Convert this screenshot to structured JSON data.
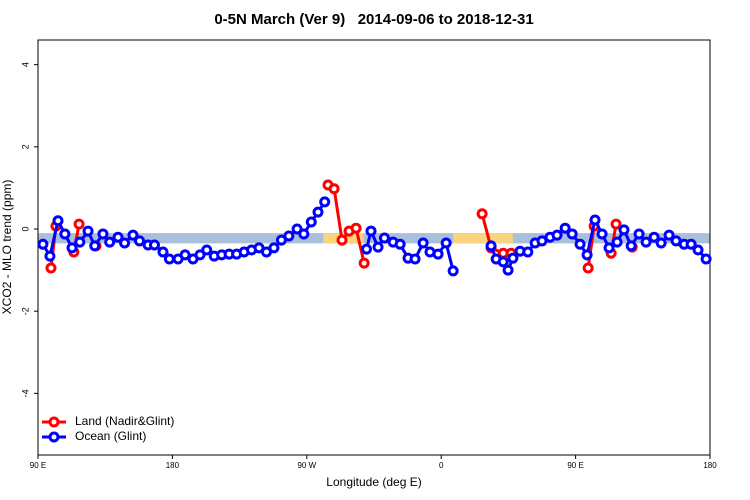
{
  "chart_data": {
    "type": "line",
    "title": "0-5N March (Ver 9)   2014-09-06 to 2018-12-31",
    "x_label": "Longitude (deg E)",
    "y_label": "XCO2 - MLO trend (ppm)",
    "xlim": [
      90,
      540
    ],
    "ylim": [
      -5.5,
      4.6
    ],
    "xticks": [
      {
        "value": 90,
        "label": "90 E"
      },
      180,
      {
        "value": 270,
        "label": "90 W"
      },
      {
        "value": 360,
        "label": "0"
      },
      {
        "value": 450,
        "label": "90 E"
      },
      {
        "value": 540,
        "label": "180"
      }
    ],
    "yticks": [
      -4,
      -2,
      0,
      2,
      4
    ],
    "band": {
      "ylim": [
        -0.35,
        -0.1
      ],
      "color": "#a9bfdc",
      "land_color": "#f8d57e",
      "land_ranges": [
        [
          281,
          308
        ],
        [
          368,
          408
        ]
      ]
    },
    "legend": "bottom-left",
    "series": [
      {
        "name": "Land (Nadir&Glint)",
        "color": "#ff0000",
        "x": [
          98.7,
          102,
          108,
          114,
          117.5,
          123,
          128.8,
          200,
          284.2,
          288.3,
          293.6,
          298.3,
          303,
          308.4,
          350,
          387.4,
          393.4,
          401.5,
          406.8,
          430,
          458.4,
          462.4,
          468,
          473.8,
          477.1,
          482,
          487.9
        ],
        "values": [
          -0.95,
          0.07,
          null,
          -0.56,
          0.12,
          null,
          -0.41,
          null,
          1.07,
          0.98,
          -0.27,
          -0.05,
          0.02,
          -0.83,
          null,
          0.37,
          -0.46,
          -0.59,
          -0.59,
          null,
          -0.95,
          0.07,
          null,
          -0.59,
          0.12,
          null,
          -0.44
        ]
      },
      {
        "name": "Ocean (Glint)",
        "color": "#0000ff",
        "x": [
          93.3,
          98,
          103.4,
          108,
          112.8,
          118,
          123.5,
          128,
          133.5,
          138,
          143.6,
          148,
          153.6,
          158,
          163.7,
          168,
          173.7,
          178,
          183.8,
          188.5,
          193.8,
          198.5,
          203,
          208,
          213,
          218,
          223,
          228,
          233,
          238,
          243,
          248,
          253,
          258,
          263.5,
          268,
          273,
          277.5,
          282,
          296,
          310,
          313,
          317.7,
          322,
          327.8,
          332.5,
          337.8,
          342.5,
          347.9,
          352.5,
          357.9,
          363.3,
          368,
          380,
          393.4,
          396.8,
          401.5,
          404.8,
          408,
          412.8,
          418,
          422.9,
          427.5,
          432.9,
          437.6,
          443,
          447.7,
          453,
          457.7,
          463,
          467.7,
          472.4,
          477.8,
          482.4,
          487.2,
          492.5,
          497.2,
          502.6,
          507.3,
          512.6,
          517.3,
          522.7,
          527.4,
          532,
          537.4
        ],
        "values": [
          -0.37,
          -0.66,
          0.2,
          -0.12,
          -0.46,
          -0.32,
          -0.05,
          -0.41,
          -0.12,
          -0.32,
          -0.2,
          -0.34,
          -0.15,
          -0.29,
          -0.39,
          -0.39,
          -0.56,
          -0.73,
          -0.73,
          -0.63,
          -0.73,
          -0.63,
          -0.51,
          -0.66,
          -0.63,
          -0.61,
          -0.61,
          -0.56,
          -0.51,
          -0.46,
          -0.56,
          -0.46,
          -0.27,
          -0.17,
          0,
          -0.12,
          0.17,
          0.41,
          0.66,
          null,
          -0.49,
          -0.05,
          -0.44,
          -0.22,
          -0.32,
          -0.37,
          -0.71,
          -0.73,
          -0.34,
          -0.56,
          -0.61,
          -0.34,
          -1.02,
          null,
          -0.41,
          -0.73,
          -0.8,
          -1.0,
          -0.71,
          -0.54,
          -0.56,
          -0.34,
          -0.29,
          -0.2,
          -0.15,
          0.02,
          -0.12,
          -0.37,
          -0.63,
          0.22,
          -0.12,
          -0.46,
          -0.32,
          -0.02,
          -0.41,
          -0.12,
          -0.32,
          -0.2,
          -0.34,
          -0.15,
          -0.29,
          -0.37,
          -0.37,
          -0.51,
          -0.73
        ]
      }
    ]
  }
}
